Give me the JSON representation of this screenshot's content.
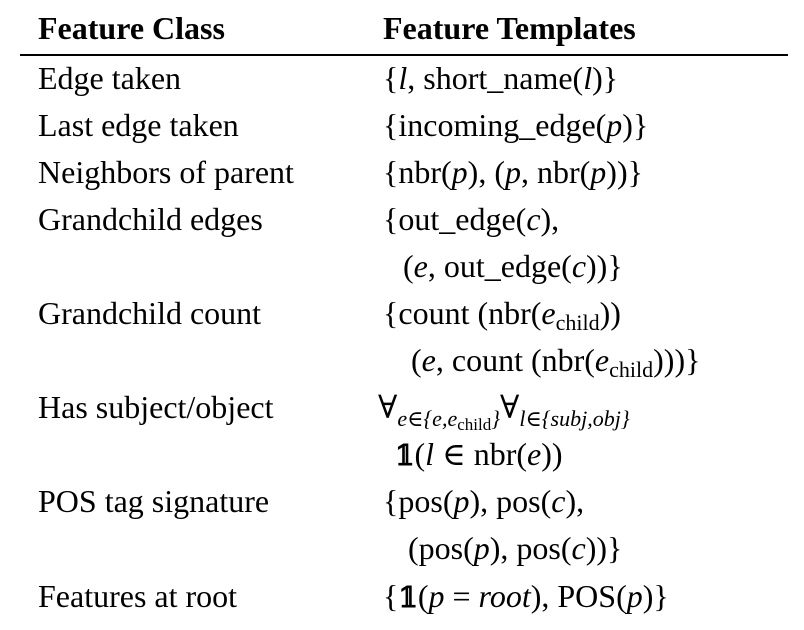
{
  "header": {
    "feature_class": "Feature Class",
    "feature_templates": "Feature Templates"
  },
  "rows": [
    {
      "class": "Edge taken",
      "f1": "short_name"
    },
    {
      "class": "Last edge taken",
      "f1": "incoming_edge"
    },
    {
      "class": "Neighbors of parent",
      "f1": "nbr"
    },
    {
      "class": "Grandchild edges",
      "f1": "out_edge"
    },
    {
      "class": "Grandchild count",
      "f1": "count",
      "f2": "nbr",
      "sub": "child"
    },
    {
      "class": "Has subject/object",
      "sub": "child",
      "set": "subj,obj",
      "f1": "nbr"
    },
    {
      "class": "POS tag signature",
      "f1": "pos"
    },
    {
      "class": "Features at root",
      "f1": "root",
      "f2": "POS"
    }
  ]
}
